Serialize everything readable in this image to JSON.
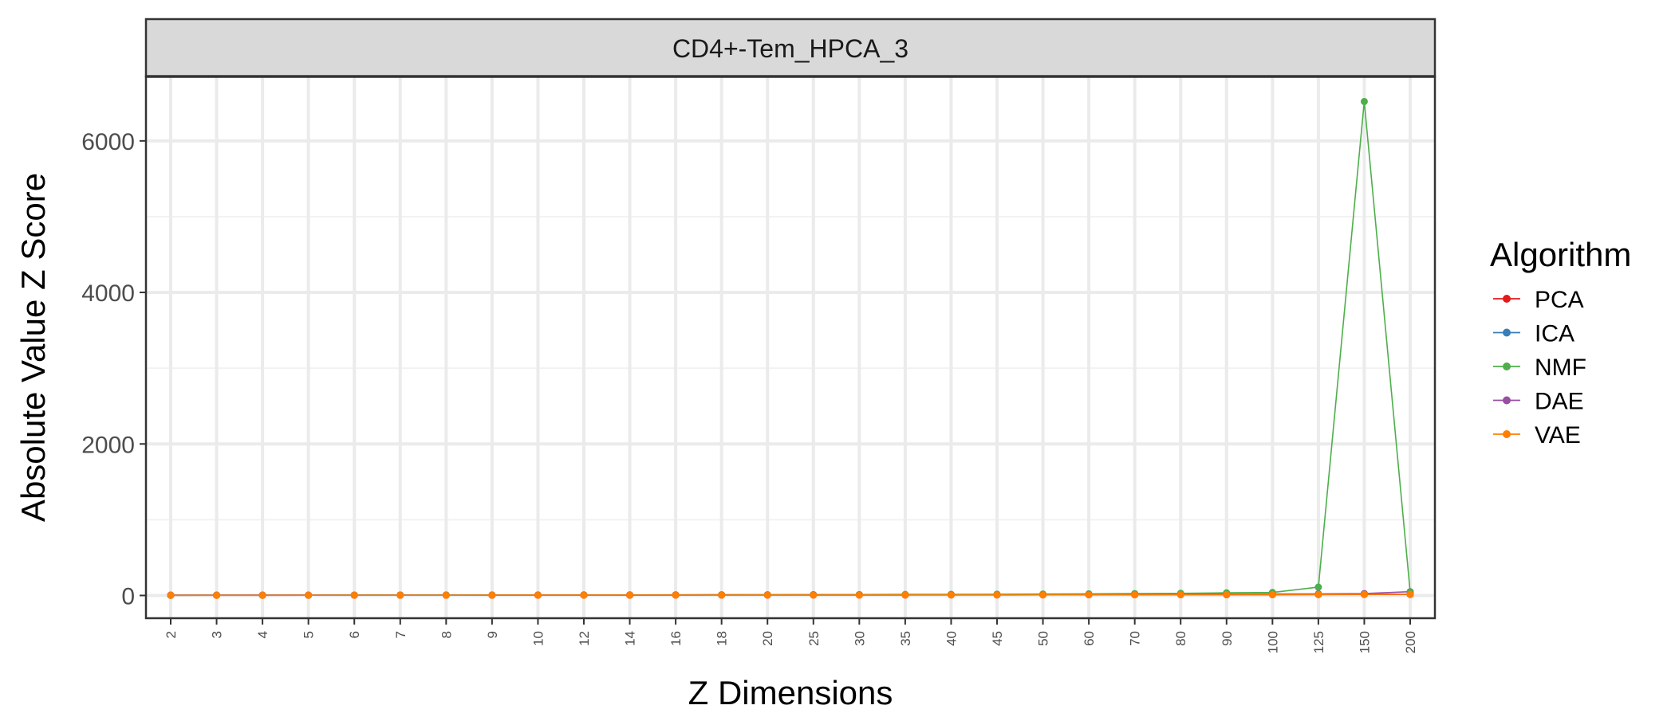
{
  "chart_data": {
    "type": "line",
    "facet_title": "CD4+-Tem_HPCA_3",
    "xlabel": "Z Dimensions",
    "ylabel": "Absolute Value Z Score",
    "categories": [
      "2",
      "3",
      "4",
      "5",
      "6",
      "7",
      "8",
      "9",
      "10",
      "12",
      "14",
      "16",
      "18",
      "20",
      "25",
      "30",
      "35",
      "40",
      "45",
      "50",
      "60",
      "70",
      "80",
      "90",
      "100",
      "125",
      "150",
      "200"
    ],
    "ylim": [
      -300,
      6850
    ],
    "y_ticks": [
      0,
      2000,
      4000,
      6000
    ],
    "y_tick_labels": [
      "0",
      "2000",
      "4000",
      "6000"
    ],
    "grid": true,
    "legend": {
      "title": "Algorithm",
      "position": "right"
    },
    "series": [
      {
        "name": "PCA",
        "color": "#e41a1c",
        "values": [
          3,
          3,
          3,
          3,
          3,
          3,
          3,
          3,
          4,
          4,
          4,
          5,
          5,
          5,
          6,
          6,
          6,
          7,
          7,
          8,
          9,
          9,
          10,
          10,
          11,
          12,
          13,
          14
        ]
      },
      {
        "name": "ICA",
        "color": "#377eb8",
        "values": [
          4,
          4,
          4,
          5,
          5,
          5,
          6,
          6,
          6,
          7,
          7,
          7,
          8,
          8,
          9,
          9,
          10,
          10,
          11,
          11,
          12,
          13,
          14,
          14,
          15,
          16,
          17,
          18
        ]
      },
      {
        "name": "NMF",
        "color": "#4daf4a",
        "values": [
          2,
          3,
          3,
          3,
          4,
          4,
          5,
          5,
          6,
          6,
          7,
          8,
          9,
          10,
          11,
          12,
          14,
          15,
          17,
          19,
          22,
          25,
          28,
          35,
          40,
          110,
          6520,
          45
        ]
      },
      {
        "name": "DAE",
        "color": "#984ea3",
        "values": [
          3,
          3,
          4,
          4,
          4,
          5,
          5,
          5,
          6,
          6,
          7,
          7,
          8,
          8,
          9,
          10,
          10,
          11,
          12,
          13,
          14,
          15,
          16,
          18,
          20,
          22,
          25,
          50
        ]
      },
      {
        "name": "VAE",
        "color": "#ff7f00",
        "values": [
          2,
          2,
          2,
          3,
          3,
          3,
          3,
          4,
          4,
          4,
          5,
          5,
          5,
          6,
          6,
          6,
          7,
          7,
          8,
          8,
          9,
          9,
          10,
          11,
          12,
          13,
          14,
          15
        ]
      }
    ]
  }
}
